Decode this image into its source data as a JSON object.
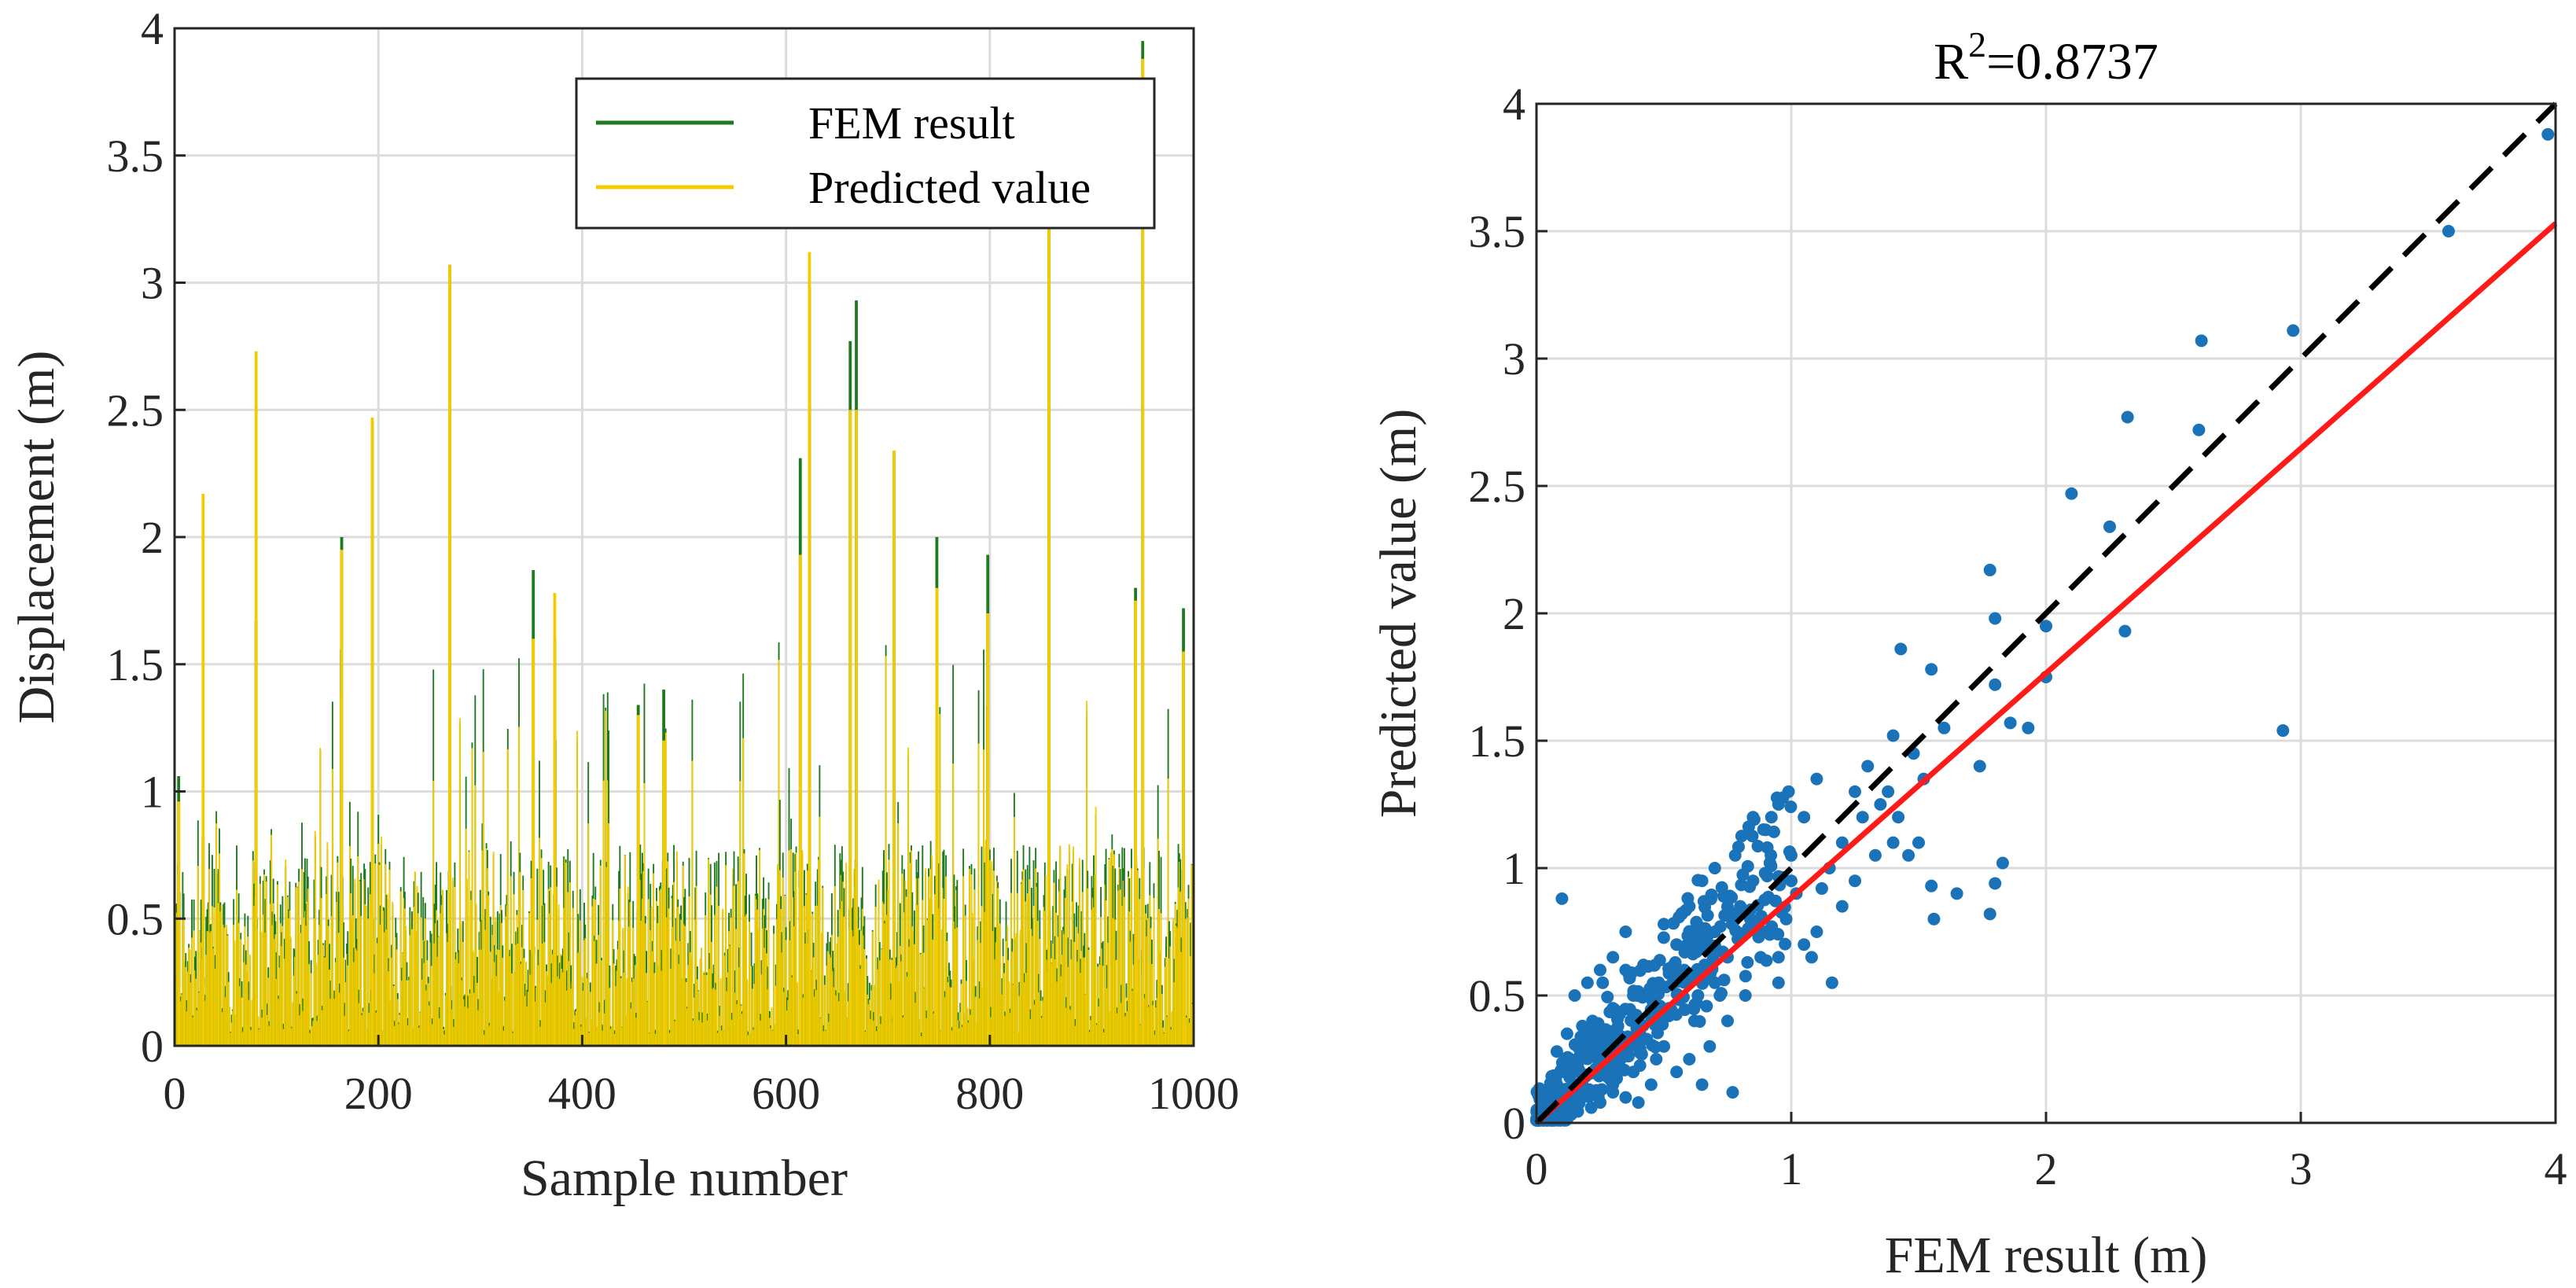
{
  "chart_data": [
    {
      "type": "line",
      "title": "",
      "xlabel": "Sample number",
      "ylabel": "Displacement (m)",
      "xlim": [
        0,
        1000
      ],
      "ylim": [
        0,
        4
      ],
      "xticks": [
        "0",
        "200",
        "400",
        "600",
        "800",
        "1000"
      ],
      "yticks": [
        "0",
        "0.5",
        "1",
        "1.5",
        "2",
        "2.5",
        "3",
        "3.5",
        "4"
      ],
      "grid": true,
      "legend_position": "top-right",
      "colors": {
        "fem": "#1f7a1f",
        "pred": "#f2cc00"
      },
      "series": [
        {
          "name": "FEM result",
          "x": [
            4,
            28,
            80,
            164,
            194,
            270,
            352,
            373,
            455,
            480,
            614,
            623,
            663,
            669,
            706,
            748,
            798,
            858,
            943,
            950,
            990
          ],
          "values": [
            1.06,
            0.82,
            1.67,
            2.0,
            2.45,
            3.07,
            1.87,
            1.6,
            1.34,
            1.4,
            2.31,
            2.98,
            2.77,
            2.93,
            2.34,
            2.0,
            1.93,
            3.22,
            1.8,
            3.95,
            1.72
          ]
        },
        {
          "name": "Predicted value",
          "x": [
            4,
            28,
            80,
            164,
            194,
            270,
            352,
            373,
            455,
            480,
            614,
            623,
            663,
            669,
            706,
            748,
            798,
            858,
            943,
            950,
            990
          ],
          "values": [
            0.96,
            2.17,
            2.73,
            1.95,
            2.47,
            3.07,
            1.6,
            1.78,
            1.3,
            1.2,
            1.93,
            3.12,
            2.5,
            2.5,
            2.34,
            1.8,
            1.7,
            3.33,
            1.75,
            3.88,
            1.55
          ]
        }
      ]
    },
    {
      "type": "scatter",
      "title_base": "R",
      "title_sup": "2",
      "title_rest": "=0.8737",
      "xlabel": "FEM result (m)",
      "ylabel": "Predicted value (m)",
      "xlim": [
        0,
        4
      ],
      "ylim": [
        0,
        4
      ],
      "xticks": [
        "0",
        "1",
        "2",
        "3",
        "4"
      ],
      "yticks": [
        "0",
        "0.5",
        "1",
        "1.5",
        "2",
        "2.5",
        "3",
        "3.5",
        "4"
      ],
      "grid": true,
      "colors": {
        "points": "#1a73b8",
        "fit": "#ff1a1a",
        "ideal": "#000000"
      },
      "ideal_line": {
        "x": [
          0,
          4
        ],
        "y": [
          0,
          4
        ]
      },
      "fit_line": {
        "x": [
          0,
          4
        ],
        "y": [
          0,
          3.53
        ]
      },
      "points": [
        [
          3.58,
          3.5
        ],
        [
          3.97,
          3.88
        ],
        [
          2.97,
          3.11
        ],
        [
          2.61,
          3.07
        ],
        [
          2.6,
          2.72
        ],
        [
          2.32,
          2.77
        ],
        [
          2.1,
          2.47
        ],
        [
          2.25,
          2.34
        ],
        [
          2.93,
          1.54
        ],
        [
          2.31,
          1.93
        ],
        [
          1.78,
          2.17
        ],
        [
          1.8,
          1.98
        ],
        [
          2.0,
          1.95
        ],
        [
          1.43,
          1.86
        ],
        [
          1.55,
          1.78
        ],
        [
          1.8,
          1.72
        ],
        [
          2.0,
          1.75
        ],
        [
          1.93,
          1.55
        ],
        [
          1.86,
          1.57
        ],
        [
          1.74,
          1.4
        ],
        [
          1.6,
          1.55
        ],
        [
          1.4,
          1.52
        ],
        [
          1.48,
          1.45
        ],
        [
          1.52,
          1.35
        ],
        [
          1.3,
          1.4
        ],
        [
          1.25,
          1.3
        ],
        [
          1.35,
          1.25
        ],
        [
          1.4,
          1.1
        ],
        [
          1.46,
          1.05
        ],
        [
          1.5,
          1.1
        ],
        [
          1.55,
          0.93
        ],
        [
          1.56,
          0.8
        ],
        [
          1.65,
          0.9
        ],
        [
          1.8,
          0.94
        ],
        [
          1.83,
          1.02
        ],
        [
          1.78,
          0.82
        ],
        [
          1.1,
          1.35
        ],
        [
          1.05,
          1.2
        ],
        [
          1.15,
          1.0
        ],
        [
          1.2,
          0.85
        ],
        [
          1.1,
          0.75
        ],
        [
          1.08,
          0.65
        ],
        [
          1.16,
          0.55
        ],
        [
          1.02,
          0.9
        ],
        [
          0.95,
          1.25
        ],
        [
          0.92,
          1.05
        ],
        [
          0.85,
          0.95
        ],
        [
          0.9,
          0.75
        ],
        [
          0.95,
          0.55
        ],
        [
          0.8,
          0.85
        ],
        [
          0.75,
          0.65
        ],
        [
          0.7,
          0.75
        ],
        [
          0.72,
          0.5
        ],
        [
          0.65,
          0.95
        ],
        [
          0.6,
          0.85
        ],
        [
          0.58,
          0.6
        ],
        [
          0.62,
          0.4
        ],
        [
          0.55,
          0.7
        ],
        [
          0.5,
          0.78
        ],
        [
          0.48,
          0.55
        ],
        [
          0.45,
          0.4
        ],
        [
          0.42,
          0.62
        ],
        [
          0.4,
          0.3
        ],
        [
          0.38,
          0.5
        ],
        [
          0.35,
          0.6
        ],
        [
          0.33,
          0.25
        ],
        [
          0.3,
          0.45
        ],
        [
          0.28,
          0.35
        ],
        [
          0.26,
          0.55
        ],
        [
          0.24,
          0.2
        ],
        [
          0.22,
          0.4
        ],
        [
          0.2,
          0.3
        ],
        [
          0.18,
          0.15
        ],
        [
          0.16,
          0.25
        ],
        [
          0.14,
          0.1
        ],
        [
          0.12,
          0.2
        ],
        [
          0.1,
          0.88
        ],
        [
          0.1,
          0.08
        ],
        [
          0.08,
          0.15
        ],
        [
          0.06,
          0.05
        ],
        [
          0.05,
          0.1
        ],
        [
          0.04,
          0.03
        ],
        [
          0.03,
          0.06
        ],
        [
          0.02,
          0.02
        ],
        [
          0.5,
          0.3
        ],
        [
          0.55,
          0.2
        ],
        [
          0.6,
          0.25
        ],
        [
          0.65,
          0.15
        ],
        [
          0.77,
          0.12
        ],
        [
          0.68,
          0.3
        ],
        [
          0.35,
          0.1
        ],
        [
          0.3,
          0.12
        ],
        [
          0.45,
          0.15
        ],
        [
          0.25,
          0.08
        ],
        [
          0.4,
          0.08
        ],
        [
          0.2,
          0.55
        ],
        [
          0.15,
          0.5
        ],
        [
          0.3,
          0.65
        ],
        [
          0.35,
          0.75
        ],
        [
          0.25,
          0.6
        ],
        [
          0.7,
          1.0
        ],
        [
          0.85,
          1.2
        ],
        [
          0.9,
          1.15
        ],
        [
          1.0,
          1.05
        ],
        [
          0.78,
          1.05
        ],
        [
          1.0,
          0.95
        ],
        [
          0.98,
          0.8
        ],
        [
          0.88,
          0.65
        ],
        [
          0.82,
          0.5
        ],
        [
          0.75,
          0.4
        ],
        [
          0.7,
          0.55
        ],
        [
          0.52,
          0.45
        ],
        [
          0.47,
          0.25
        ],
        [
          0.38,
          0.2
        ],
        [
          0.28,
          0.18
        ],
        [
          0.18,
          0.38
        ],
        [
          0.12,
          0.35
        ],
        [
          0.08,
          0.28
        ],
        [
          0.57,
          0.82
        ],
        [
          0.6,
          0.7
        ],
        [
          0.43,
          0.5
        ],
        [
          0.32,
          0.38
        ],
        [
          1.2,
          1.1
        ],
        [
          1.28,
          1.2
        ],
        [
          1.33,
          1.05
        ],
        [
          1.25,
          0.95
        ],
        [
          1.38,
          1.3
        ],
        [
          1.42,
          1.2
        ],
        [
          1.12,
          0.92
        ],
        [
          1.05,
          0.7
        ],
        [
          0.95,
          0.65
        ],
        [
          0.66,
          0.62
        ]
      ]
    }
  ]
}
